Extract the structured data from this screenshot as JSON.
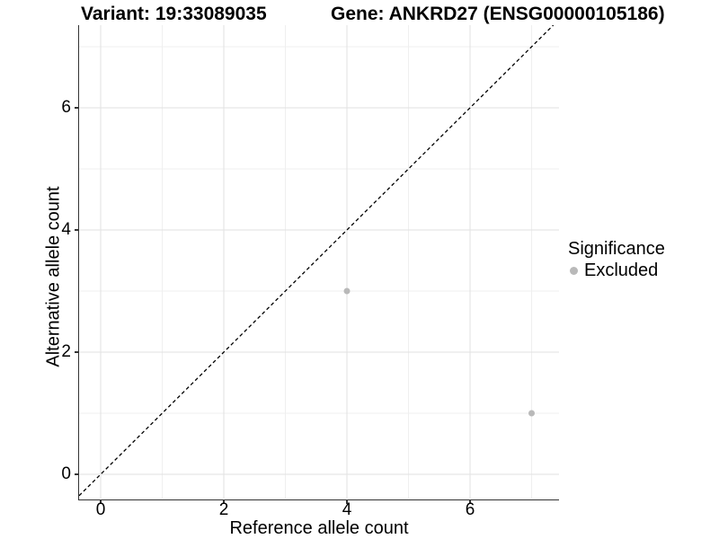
{
  "chart_data": {
    "type": "scatter",
    "title_left": "Variant: 19:33089035",
    "title_right": "Gene: ANKRD27 (ENSG00000105186)",
    "xlabel": "Reference allele count",
    "ylabel": "Alternative allele count",
    "xlim": [
      -0.35,
      7.45
    ],
    "ylim": [
      -0.4,
      7.35
    ],
    "x_ticks": [
      0,
      2,
      4,
      6
    ],
    "y_ticks": [
      0,
      2,
      4,
      6
    ],
    "minor_gridlines": [
      1,
      3,
      5,
      7
    ],
    "grid": "on",
    "legend": {
      "title": "Significance",
      "position": "right"
    },
    "series": [
      {
        "name": "Excluded",
        "color": "#b9b9b9",
        "points": [
          [
            4,
            3
          ],
          [
            7,
            1
          ]
        ]
      }
    ],
    "reference_line": {
      "type": "identity",
      "equation": "y = x",
      "style": "dashed",
      "color": "#000000"
    }
  },
  "colors": {
    "major_grid": "#e2e2e2",
    "minor_grid": "#efefef",
    "axis_line": "#333333",
    "text": "#000000"
  }
}
